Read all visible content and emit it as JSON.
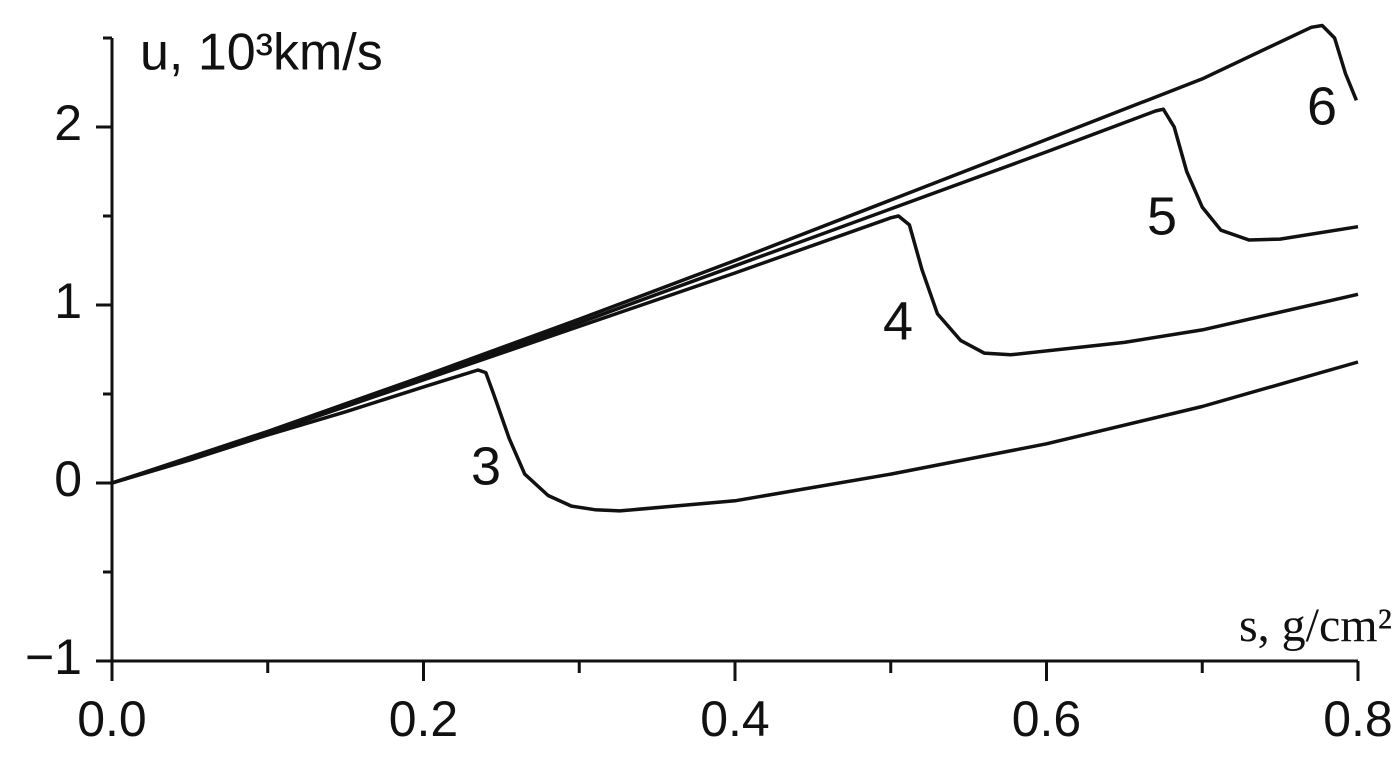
{
  "chart_data": {
    "type": "line",
    "ylabel": "u, 10³km/s",
    "xlabel": "s, g/cm²",
    "xlim": [
      0,
      0.8
    ],
    "ylim": [
      -1,
      2.5
    ],
    "xticks": [
      {
        "value": 0,
        "label": "0.0"
      },
      0.2,
      0.4,
      0.6,
      0.8
    ],
    "xminorticks": [
      0.1,
      0.3,
      0.5,
      0.7
    ],
    "yticks": [
      {
        "value": -1,
        "label": "−1"
      },
      0,
      1,
      2
    ],
    "yminorticks": [
      -0.5,
      0.5,
      1.5,
      2.5
    ],
    "color": "#111111",
    "series": [
      {
        "name": "3",
        "x": [
          0,
          0.05,
          0.1,
          0.15,
          0.2,
          0.235,
          0.24,
          0.245,
          0.255,
          0.265,
          0.28,
          0.295,
          0.31,
          0.326,
          0.4,
          0.5,
          0.6,
          0.7,
          0.8
        ],
        "values": [
          0,
          0.13,
          0.27,
          0.4,
          0.54,
          0.635,
          0.62,
          0.5,
          0.25,
          0.05,
          -0.07,
          -0.13,
          -0.15,
          -0.157,
          -0.1,
          0.05,
          0.22,
          0.43,
          0.68
        ]
      },
      {
        "name": "4",
        "x": [
          0,
          0.1,
          0.2,
          0.3,
          0.4,
          0.5,
          0.505,
          0.512,
          0.52,
          0.53,
          0.545,
          0.56,
          0.577,
          0.65,
          0.7,
          0.8
        ],
        "values": [
          0,
          0.28,
          0.58,
          0.88,
          1.18,
          1.49,
          1.5,
          1.45,
          1.2,
          0.95,
          0.8,
          0.73,
          0.72,
          0.79,
          0.86,
          1.06
        ]
      },
      {
        "name": "5",
        "x": [
          0,
          0.1,
          0.2,
          0.3,
          0.4,
          0.5,
          0.6,
          0.67,
          0.675,
          0.682,
          0.69,
          0.7,
          0.712,
          0.73,
          0.75,
          0.8
        ],
        "values": [
          0,
          0.28,
          0.59,
          0.9,
          1.22,
          1.54,
          1.86,
          2.09,
          2.1,
          2.0,
          1.75,
          1.55,
          1.42,
          1.365,
          1.37,
          1.44
        ]
      },
      {
        "name": "6",
        "x": [
          0,
          0.1,
          0.2,
          0.3,
          0.4,
          0.5,
          0.6,
          0.7,
          0.77,
          0.777,
          0.785,
          0.792,
          0.799
        ],
        "values": [
          0,
          0.29,
          0.6,
          0.92,
          1.25,
          1.59,
          1.93,
          2.27,
          2.56,
          2.57,
          2.5,
          2.3,
          2.15
        ]
      }
    ]
  }
}
